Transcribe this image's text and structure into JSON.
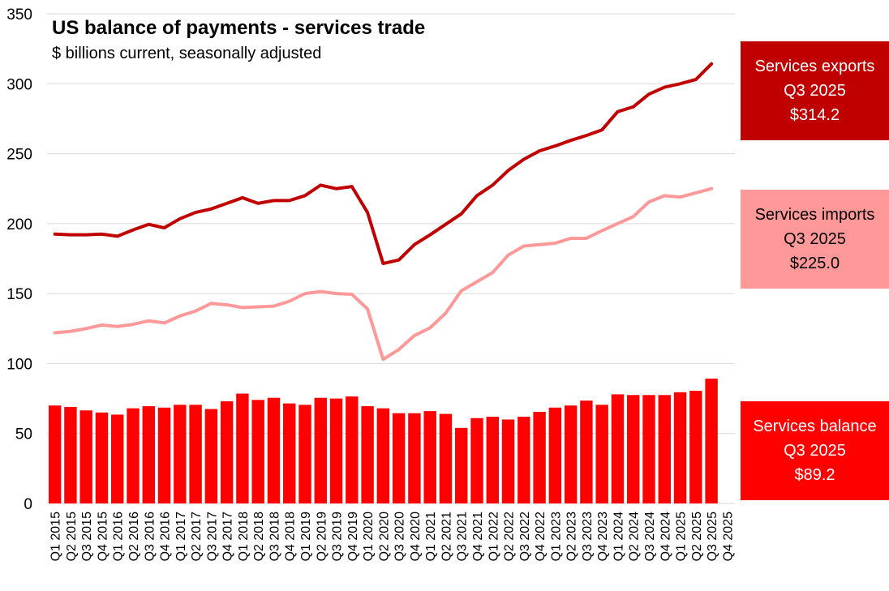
{
  "chart_data": {
    "type": "bar+line",
    "title": "US balance of payments - services trade",
    "subtitle": "$ billions current, seasonally adjusted",
    "ylim": [
      0,
      350
    ],
    "yticks": [
      0,
      50,
      100,
      150,
      200,
      250,
      300,
      350
    ],
    "grid": true,
    "categories": [
      "Q1 2015",
      "Q2 2015",
      "Q3 2015",
      "Q4 2015",
      "Q1 2016",
      "Q2 2016",
      "Q3 2016",
      "Q4 2016",
      "Q1 2017",
      "Q2 2017",
      "Q3 2017",
      "Q4 2017",
      "Q1 2018",
      "Q2 2018",
      "Q3 2018",
      "Q4 2018",
      "Q1 2019",
      "Q2 2019",
      "Q3 2019",
      "Q4 2019",
      "Q1 2020",
      "Q2 2020",
      "Q3 2020",
      "Q4 2020",
      "Q1 2021",
      "Q2 2021",
      "Q3 2021",
      "Q4 2021",
      "Q1 2022",
      "Q2 2022",
      "Q3 2022",
      "Q4 2022",
      "Q1 2023",
      "Q2 2023",
      "Q3 2023",
      "Q4 2023",
      "Q1 2024",
      "Q2 2024",
      "Q3 2024",
      "Q4 2024",
      "Q1 2025",
      "Q2 2025",
      "Q3 2025",
      "Q4 2025"
    ],
    "series": [
      {
        "name": "Services balance",
        "type": "bar",
        "color": "#ff0000",
        "values": [
          70.0,
          69.0,
          66.5,
          65.0,
          63.5,
          68.0,
          69.5,
          68.5,
          70.5,
          70.5,
          67.5,
          73.0,
          78.5,
          74.0,
          75.5,
          71.5,
          70.5,
          75.5,
          75.0,
          76.5,
          69.5,
          68.0,
          64.5,
          64.5,
          66.0,
          64.0,
          54.0,
          61.0,
          62.0,
          60.0,
          62.0,
          65.5,
          68.5,
          70.0,
          73.5,
          70.5,
          78.0,
          77.5,
          77.5,
          77.5,
          79.5,
          80.5,
          89.2,
          null
        ]
      },
      {
        "name": "Services exports",
        "type": "line",
        "color": "#c00000",
        "values": [
          192.5,
          192.0,
          192.0,
          192.5,
          191.0,
          195.5,
          199.5,
          197.0,
          203.5,
          208.0,
          210.5,
          214.5,
          218.5,
          214.5,
          216.5,
          216.5,
          220.0,
          227.5,
          225.0,
          226.5,
          208.0,
          171.5,
          174.0,
          185.0,
          192.0,
          199.5,
          207.0,
          220.0,
          227.5,
          238.0,
          246.0,
          252.0,
          255.5,
          259.5,
          263.0,
          267.0,
          280.0,
          283.5,
          292.5,
          297.5,
          300.0,
          303.0,
          314.2,
          null
        ]
      },
      {
        "name": "Services imports",
        "type": "line",
        "color": "#ff9999",
        "values": [
          122.0,
          123.0,
          125.0,
          127.5,
          126.5,
          128.0,
          130.5,
          129.0,
          134.0,
          137.5,
          143.0,
          142.0,
          140.0,
          140.5,
          141.0,
          144.5,
          150.0,
          151.5,
          150.0,
          149.5,
          139.0,
          103.0,
          110.0,
          120.0,
          125.5,
          136.0,
          152.0,
          158.5,
          165.0,
          177.5,
          184.0,
          185.0,
          186.0,
          189.5,
          189.5,
          195.0,
          200.0,
          205.0,
          215.5,
          220.0,
          219.0,
          222.0,
          225.0,
          null
        ]
      }
    ]
  },
  "callouts": [
    {
      "key": "exports",
      "bg": "#c00000",
      "fg": "#ffffff",
      "line1": "Services exports",
      "line2": "Q3 2025",
      "line3": "$314.2"
    },
    {
      "key": "imports",
      "bg": "#ff9999",
      "fg": "#000000",
      "line1": "Services imports",
      "line2": "Q3 2025",
      "line3": "$225.0"
    },
    {
      "key": "balance",
      "bg": "#ff0000",
      "fg": "#ffffff",
      "line1": "Services balance",
      "line2": "Q3 2025",
      "line3": "$89.2"
    }
  ]
}
